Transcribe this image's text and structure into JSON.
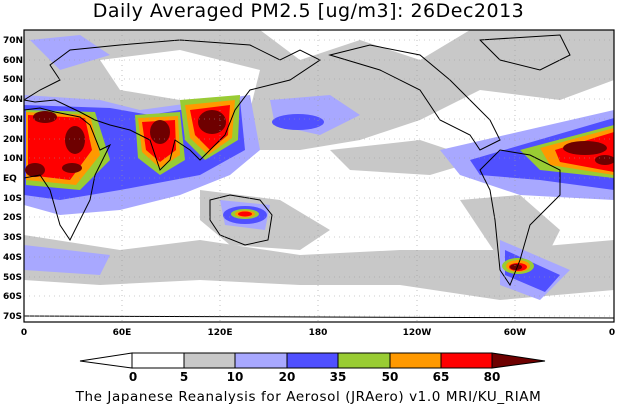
{
  "title": "Daily Averaged PM2.5 [ug/m3]: 26Dec2013",
  "footer": "The Japanese Reanalysis for Aerosol (JRAero) v1.0 MRI/KU_RIAM",
  "map": {
    "variable": "PM2.5",
    "units": "ug/m3",
    "date": "26Dec2013",
    "lat_labels": [
      "70N",
      "60N",
      "50N",
      "40N",
      "30N",
      "20N",
      "10N",
      "EQ",
      "10S",
      "20S",
      "30S",
      "40S",
      "50S",
      "60S",
      "70S"
    ],
    "lon_labels": [
      "0",
      "60E",
      "120E",
      "180",
      "120W",
      "60W",
      "0"
    ]
  },
  "colorbar": {
    "labels": [
      "0",
      "5",
      "10",
      "20",
      "35",
      "50",
      "65",
      "80"
    ],
    "colors": [
      "#ffffff",
      "#ffffff",
      "#c8c8c8",
      "#a8a8ff",
      "#5050ff",
      "#99cc33",
      "#ff9900",
      "#ff0000",
      "#6e0000"
    ]
  }
}
